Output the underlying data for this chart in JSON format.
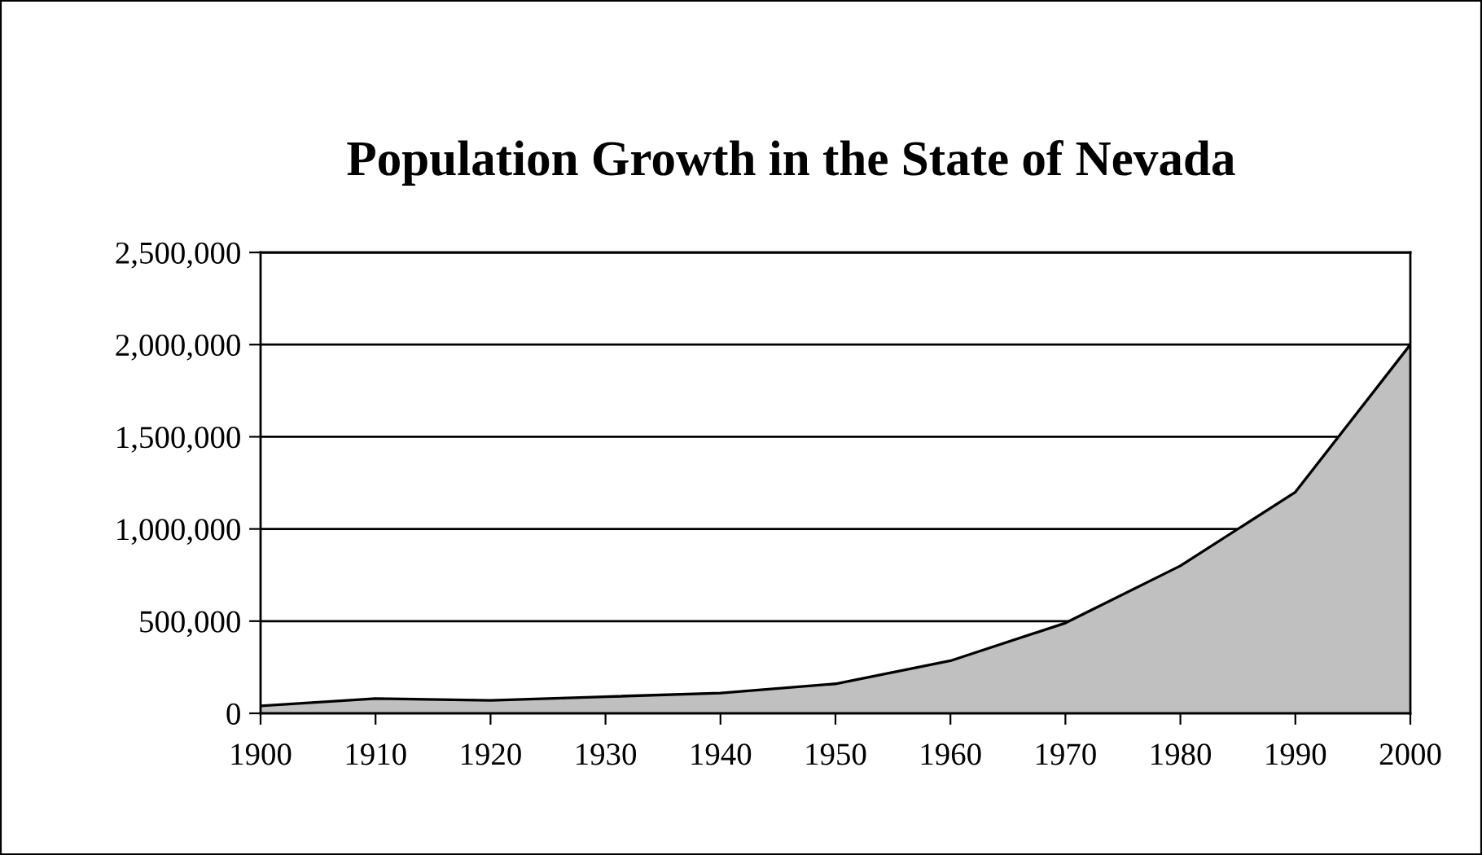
{
  "chart_data": {
    "type": "area",
    "title": "Population Growth in the State of Nevada",
    "x": [
      1900,
      1910,
      1920,
      1930,
      1940,
      1950,
      1960,
      1970,
      1980,
      1990,
      2000
    ],
    "series": [
      {
        "color": "#c0c0c0",
        "values": [
          40000,
          80000,
          70000,
          90000,
          110000,
          160000,
          285000,
          490000,
          800000,
          1200000,
          2000000
        ]
      }
    ],
    "xlim": [
      1900,
      2000
    ],
    "xticks": [
      1900,
      1910,
      1920,
      1930,
      1940,
      1950,
      1960,
      1970,
      1980,
      1990,
      2000
    ],
    "ylim": [
      0,
      2500000
    ],
    "yticks": [
      0,
      {
        "value": 500000,
        "label": "500,000"
      },
      {
        "value": 1000000,
        "label": "1,000,000"
      },
      {
        "value": 1500000,
        "label": "1,500,000"
      },
      {
        "value": 2000000,
        "label": "2,000,000"
      },
      {
        "value": 2500000,
        "label": "2,500,000"
      }
    ],
    "grid": "y",
    "legend": false
  }
}
